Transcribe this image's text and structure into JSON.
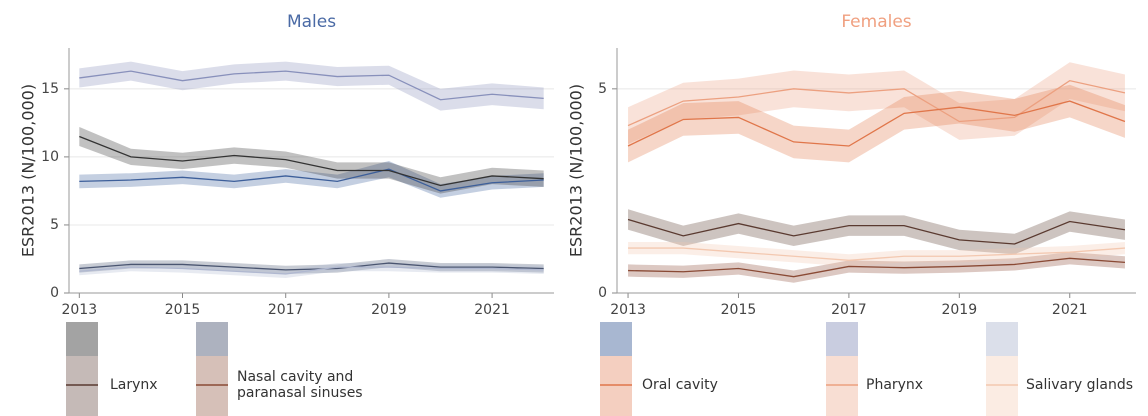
{
  "chart_data": [
    {
      "type": "line",
      "title": "Males",
      "title_color": "#4a6aa5",
      "y_label": "ESR2013 (N/100,000)",
      "x": [
        2013,
        2014,
        2015,
        2016,
        2017,
        2018,
        2019,
        2020,
        2021,
        2022
      ],
      "xlim": [
        2012.8,
        2022.2
      ],
      "xticks": [
        2013,
        2015,
        2017,
        2019,
        2021
      ],
      "ylim": [
        0,
        18
      ],
      "yticks": [
        0,
        5,
        10,
        15
      ],
      "grid": true,
      "series": [
        {
          "name": "Larynx",
          "color": "#333333",
          "values": [
            11.5,
            10.0,
            9.7,
            10.1,
            9.8,
            9.0,
            9.0,
            7.9,
            8.6,
            8.4
          ],
          "ci": [
            0.7,
            0.6,
            0.6,
            0.6,
            0.6,
            0.6,
            0.6,
            0.6,
            0.6,
            0.6
          ]
        },
        {
          "name": "Nasal cavity and paranasal sinuses",
          "color": "#4a5570",
          "values": [
            1.8,
            2.1,
            2.1,
            1.9,
            1.7,
            1.8,
            2.2,
            1.9,
            1.9,
            1.8
          ],
          "ci": [
            0.3,
            0.3,
            0.3,
            0.3,
            0.3,
            0.3,
            0.3,
            0.3,
            0.3,
            0.3
          ]
        },
        {
          "name": "Oral cavity",
          "color": "#3d5f9a",
          "values": [
            8.2,
            8.3,
            8.5,
            8.2,
            8.6,
            8.2,
            9.1,
            7.5,
            8.1,
            8.3
          ],
          "ci": [
            0.5,
            0.5,
            0.5,
            0.5,
            0.5,
            0.5,
            0.6,
            0.5,
            0.5,
            0.5
          ]
        },
        {
          "name": "Pharynx",
          "color": "#8890bb",
          "values": [
            15.8,
            16.3,
            15.6,
            16.1,
            16.3,
            15.9,
            16.0,
            14.2,
            14.6,
            14.3
          ],
          "ci": [
            0.7,
            0.7,
            0.7,
            0.7,
            0.7,
            0.7,
            0.7,
            0.8,
            0.8,
            0.8
          ]
        },
        {
          "name": "Salivary glands",
          "color": "#b0b8d0",
          "values": [
            1.6,
            1.9,
            1.8,
            1.6,
            1.4,
            1.9,
            1.9,
            1.8,
            1.8,
            1.7
          ],
          "ci": [
            0.3,
            0.3,
            0.3,
            0.3,
            0.3,
            0.3,
            0.3,
            0.3,
            0.3,
            0.3
          ]
        }
      ]
    },
    {
      "type": "line",
      "title": "Females",
      "title_color": "#f0a080",
      "y_label": "ESR2013 (N/100,000)",
      "x": [
        2013,
        2014,
        2015,
        2016,
        2017,
        2018,
        2019,
        2020,
        2021,
        2022
      ],
      "xlim": [
        2012.8,
        2022.2
      ],
      "xticks": [
        2013,
        2015,
        2017,
        2019,
        2021
      ],
      "ylim": [
        0,
        6
      ],
      "yticks": [
        0,
        5
      ],
      "grid": true,
      "series": [
        {
          "name": "Larynx",
          "color": "#5a3a30",
          "values": [
            1.8,
            1.4,
            1.7,
            1.4,
            1.65,
            1.65,
            1.3,
            1.2,
            1.75,
            1.55
          ],
          "ci": [
            0.25,
            0.25,
            0.25,
            0.25,
            0.25,
            0.25,
            0.25,
            0.25,
            0.25,
            0.25
          ]
        },
        {
          "name": "Nasal cavity and paranasal sinuses",
          "color": "#8a4a35",
          "values": [
            0.55,
            0.52,
            0.6,
            0.4,
            0.65,
            0.62,
            0.65,
            0.7,
            0.85,
            0.75
          ],
          "ci": [
            0.15,
            0.15,
            0.15,
            0.15,
            0.15,
            0.15,
            0.15,
            0.15,
            0.15,
            0.15
          ]
        },
        {
          "name": "Oral cavity",
          "color": "#e0764a",
          "values": [
            3.6,
            4.25,
            4.3,
            3.7,
            3.6,
            4.4,
            4.55,
            4.35,
            4.7,
            4.2
          ],
          "ci": [
            0.4,
            0.4,
            0.4,
            0.4,
            0.4,
            0.4,
            0.4,
            0.4,
            0.4,
            0.4
          ]
        },
        {
          "name": "Pharynx",
          "color": "#eca080",
          "values": [
            4.1,
            4.7,
            4.8,
            5.0,
            4.9,
            5.0,
            4.2,
            4.3,
            5.2,
            4.9
          ],
          "ci": [
            0.45,
            0.45,
            0.45,
            0.45,
            0.45,
            0.45,
            0.45,
            0.45,
            0.45,
            0.45
          ]
        },
        {
          "name": "Salivary glands",
          "color": "#f3c8b0",
          "values": [
            1.1,
            1.1,
            1.0,
            0.9,
            0.8,
            0.9,
            0.9,
            0.95,
            1.0,
            1.1
          ],
          "ci": [
            0.15,
            0.15,
            0.15,
            0.15,
            0.15,
            0.15,
            0.15,
            0.15,
            0.15,
            0.15
          ]
        }
      ]
    }
  ]
}
